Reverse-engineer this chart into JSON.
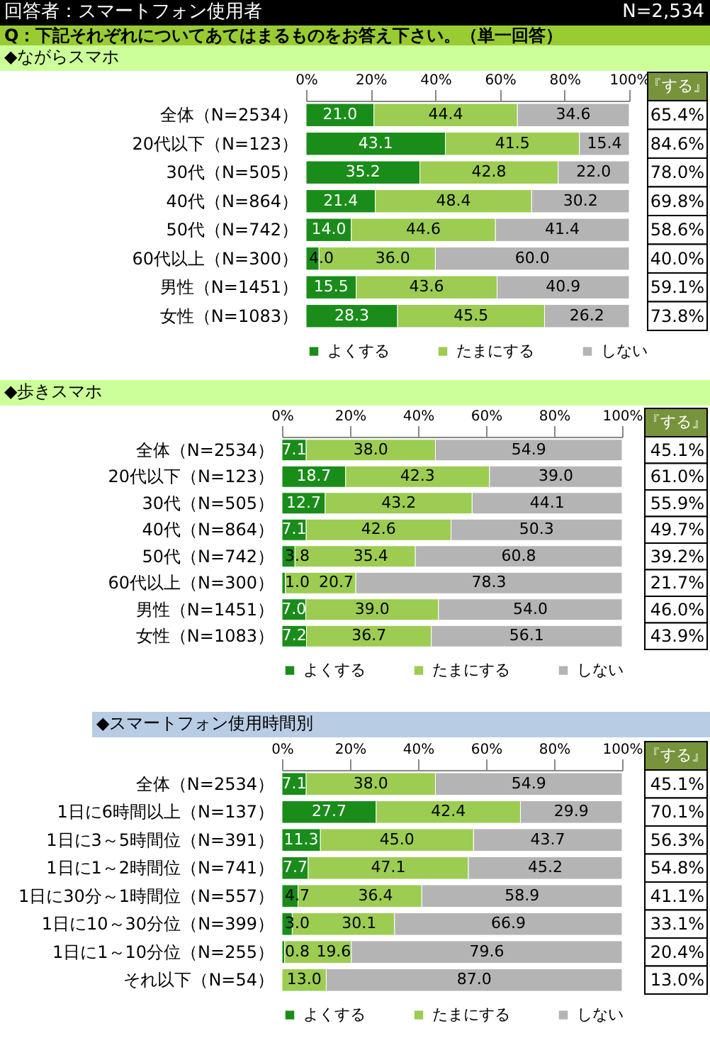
{
  "chart_data": [
    {
      "type": "bar",
      "orientation": "horizontal",
      "stacked": true,
      "title": "◆ながらスマホ",
      "annotations": [
        "回答者：スマートフォン使用者",
        "N=2,534",
        "Q：下記それぞれについてあてはまるものをお答え下さい。（単一回答）",
        "『する』",
        "65.4%",
        "84.6%",
        "78.0%",
        "69.8%",
        "58.6%",
        "40.0%",
        "59.1%",
        "73.8%"
      ],
      "categories": [
        "全体（N=2534）",
        "20代以下（N=123）",
        "30代（N=505）",
        "40代（N=864）",
        "50代（N=742）",
        "60代以上（N=300）",
        "男性（N=1451）",
        "女性（N=1083）"
      ],
      "series": [
        {
          "name": "よくする",
          "color": "#1a8c1a",
          "values": [
            21.0,
            43.1,
            35.2,
            21.4,
            14.0,
            4.0,
            15.5,
            28.3
          ],
          "value_labels": [
            "21.0",
            "43.1",
            "35.2",
            "21.4",
            "14.0",
            "4.0",
            "15.5",
            "28.3"
          ]
        },
        {
          "name": "たまにする",
          "color": "#9ccc52",
          "values": [
            44.4,
            41.5,
            42.8,
            48.4,
            44.6,
            36.0,
            43.6,
            45.5
          ],
          "value_labels": [
            "44.4",
            "41.5",
            "42.8",
            "48.4",
            "44.6",
            "36.0",
            "43.6",
            "45.5"
          ]
        },
        {
          "name": "しない",
          "color": "#b4b4b4",
          "values": [
            34.6,
            15.4,
            22.0,
            30.2,
            41.4,
            60.0,
            40.9,
            26.2
          ],
          "value_labels": [
            "34.6",
            "15.4",
            "22.0",
            "30.2",
            "41.4",
            "60.0",
            "40.9",
            "26.2"
          ]
        }
      ],
      "xlim": [
        0,
        100
      ],
      "xticks": [
        {
          "value": 0,
          "label": "0%"
        },
        {
          "value": 20,
          "label": "20%"
        },
        {
          "value": 40,
          "label": "40%"
        },
        {
          "value": 60,
          "label": "60%"
        },
        {
          "value": 80,
          "label": "80%"
        },
        {
          "value": 100,
          "label": "100%"
        }
      ],
      "legend": "bottom"
    },
    {
      "type": "bar",
      "orientation": "horizontal",
      "stacked": true,
      "title": "◆歩きスマホ",
      "annotations": [
        "『する』",
        "45.1%",
        "61.0%",
        "55.9%",
        "49.7%",
        "39.2%",
        "21.7%",
        "46.0%",
        "43.9%"
      ],
      "categories": [
        "全体（N=2534）",
        "20代以下（N=123）",
        "30代（N=505）",
        "40代（N=864）",
        "50代（N=742）",
        "60代以上（N=300）",
        "男性（N=1451）",
        "女性（N=1083）"
      ],
      "series": [
        {
          "name": "よくする",
          "color": "#1a8c1a",
          "values": [
            7.1,
            18.7,
            12.7,
            7.1,
            3.8,
            1.0,
            7.0,
            7.2
          ],
          "value_labels": [
            "7.1",
            "18.7",
            "12.7",
            "7.1",
            "3.8",
            "1.0",
            "7.0",
            "7.2"
          ]
        },
        {
          "name": "たまにする",
          "color": "#9ccc52",
          "values": [
            38.0,
            42.3,
            43.2,
            42.6,
            35.4,
            20.7,
            39.0,
            36.7
          ],
          "value_labels": [
            "38.0",
            "42.3",
            "43.2",
            "42.6",
            "35.4",
            "20.7",
            "39.0",
            "36.7"
          ]
        },
        {
          "name": "しない",
          "color": "#b4b4b4",
          "values": [
            54.9,
            39.0,
            44.1,
            50.3,
            60.8,
            78.3,
            54.0,
            56.1
          ],
          "value_labels": [
            "54.9",
            "39.0",
            "44.1",
            "50.3",
            "60.8",
            "78.3",
            "54.0",
            "56.1"
          ]
        }
      ],
      "xlim": [
        0,
        100
      ],
      "xticks": [
        {
          "value": 0,
          "label": "0%"
        },
        {
          "value": 20,
          "label": "20%"
        },
        {
          "value": 40,
          "label": "40%"
        },
        {
          "value": 60,
          "label": "60%"
        },
        {
          "value": 80,
          "label": "80%"
        },
        {
          "value": 100,
          "label": "100%"
        }
      ],
      "legend": "bottom"
    },
    {
      "type": "bar",
      "orientation": "horizontal",
      "stacked": true,
      "title": "◆スマートフォン使用時間別",
      "annotations": [
        "『する』",
        "45.1%",
        "70.1%",
        "56.3%",
        "54.8%",
        "41.1%",
        "33.1%",
        "20.4%",
        "13.0%"
      ],
      "categories": [
        "全体（N=2534）",
        "1日に6時間以上（N=137）",
        "1日に3～5時間位（N=391）",
        "1日に1～2時間位（N=741）",
        "1日に30分～1時間位（N=557）",
        "1日に10～30分位（N=399）",
        "1日に1～10分位（N=255）",
        "それ以下（N=54）"
      ],
      "series": [
        {
          "name": "よくする",
          "color": "#1a8c1a",
          "values": [
            7.1,
            27.7,
            11.3,
            7.7,
            4.7,
            3.0,
            0.8,
            0.0
          ],
          "value_labels": [
            "7.1",
            "27.7",
            "11.3",
            "7.7",
            "4.7",
            "3.0",
            "0.8",
            null
          ]
        },
        {
          "name": "たまにする",
          "color": "#9ccc52",
          "values": [
            38.0,
            42.4,
            45.0,
            47.1,
            36.4,
            30.1,
            19.6,
            13.0
          ],
          "value_labels": [
            "38.0",
            "42.4",
            "45.0",
            "47.1",
            "36.4",
            "30.1",
            "19.6",
            "13.0"
          ]
        },
        {
          "name": "しない",
          "color": "#b4b4b4",
          "values": [
            54.9,
            29.9,
            43.7,
            45.2,
            58.9,
            66.9,
            79.6,
            87.0
          ],
          "value_labels": [
            "54.9",
            "29.9",
            "43.7",
            "45.2",
            "58.9",
            "66.9",
            "79.6",
            "87.0"
          ]
        }
      ],
      "xlim": [
        0,
        100
      ],
      "xticks": [
        {
          "value": 0,
          "label": "0%"
        },
        {
          "value": 20,
          "label": "20%"
        },
        {
          "value": 40,
          "label": "40%"
        },
        {
          "value": 60,
          "label": "60%"
        },
        {
          "value": 80,
          "label": "80%"
        },
        {
          "value": 100,
          "label": "100%"
        }
      ],
      "legend": "bottom"
    }
  ]
}
